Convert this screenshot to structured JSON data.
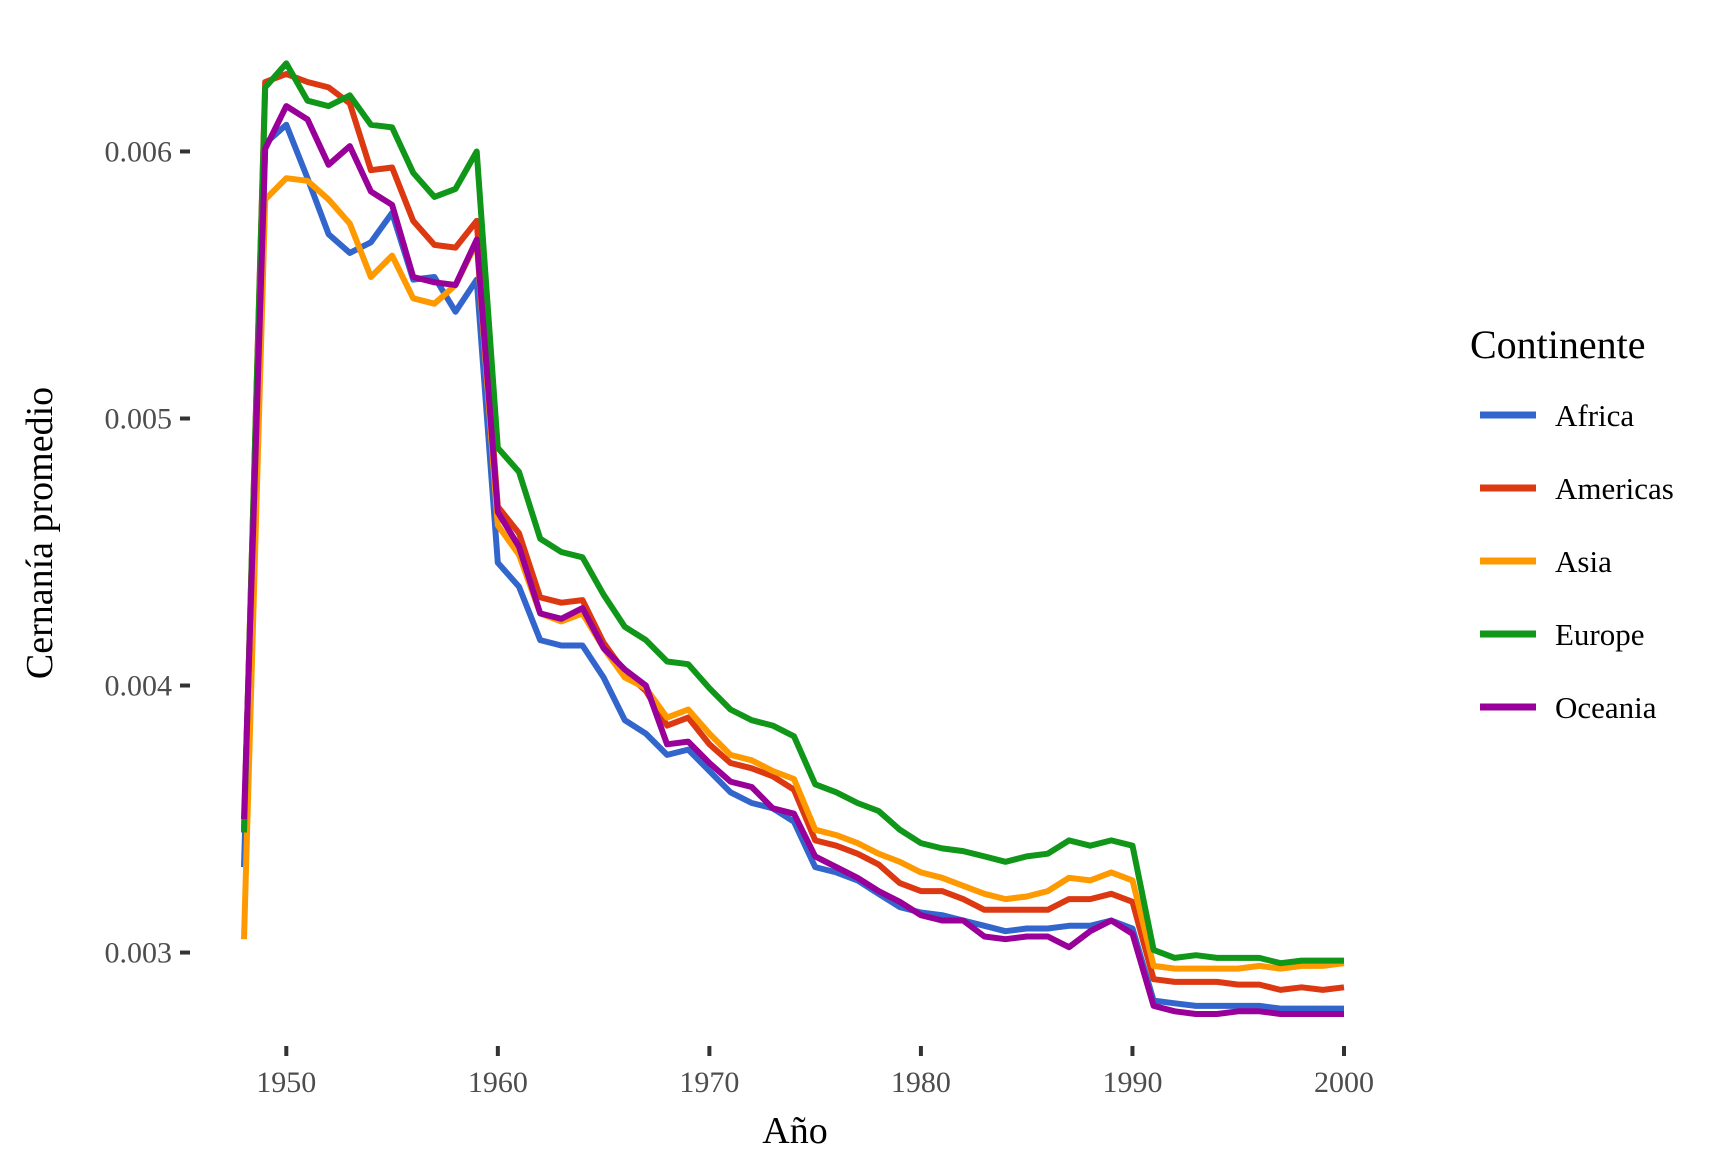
{
  "chart_data": {
    "type": "line",
    "title": "",
    "xlabel": "Año",
    "ylabel": "Cernanía promedio",
    "xlim": [
      1948,
      2000
    ],
    "ylim": [
      0.00265,
      0.00638
    ],
    "x_ticks": [
      1950,
      1960,
      1970,
      1980,
      1990,
      2000
    ],
    "y_ticks": [
      0.003,
      0.004,
      0.005,
      0.006
    ],
    "y_tick_labels": [
      "0.003",
      "0.004",
      "0.005",
      "0.006"
    ],
    "grid": false,
    "legend": {
      "title": "Continente",
      "position": "right"
    },
    "x": [
      1948,
      1949,
      1950,
      1951,
      1952,
      1953,
      1954,
      1955,
      1956,
      1957,
      1958,
      1959,
      1960,
      1961,
      1962,
      1963,
      1964,
      1965,
      1966,
      1967,
      1968,
      1969,
      1970,
      1971,
      1972,
      1973,
      1974,
      1975,
      1976,
      1977,
      1978,
      1979,
      1980,
      1981,
      1982,
      1983,
      1984,
      1985,
      1986,
      1987,
      1988,
      1989,
      1990,
      1991,
      1992,
      1993,
      1994,
      1995,
      1996,
      1997,
      1998,
      1999,
      2000
    ],
    "series": [
      {
        "name": "Africa",
        "color": "#3366cc",
        "values": [
          0.00332,
          0.00603,
          0.0061,
          0.0059,
          0.00569,
          0.00562,
          0.00566,
          0.00577,
          0.00552,
          0.00553,
          0.0054,
          0.00552,
          0.00446,
          0.00437,
          0.00417,
          0.00415,
          0.00415,
          0.00403,
          0.00387,
          0.00382,
          0.00374,
          0.00376,
          0.00368,
          0.0036,
          0.00356,
          0.00354,
          0.00349,
          0.00332,
          0.0033,
          0.00327,
          0.00322,
          0.00317,
          0.00315,
          0.00314,
          0.00312,
          0.0031,
          0.00308,
          0.00309,
          0.00309,
          0.0031,
          0.0031,
          0.00312,
          0.00309,
          0.00282,
          0.00281,
          0.0028,
          0.0028,
          0.0028,
          0.0028,
          0.00279,
          0.00279,
          0.00279,
          0.00279
        ]
      },
      {
        "name": "Americas",
        "color": "#dc3912",
        "values": [
          0.00345,
          0.00626,
          0.00629,
          0.00626,
          0.00624,
          0.00618,
          0.00593,
          0.00594,
          0.00574,
          0.00565,
          0.00564,
          0.00574,
          0.00467,
          0.00457,
          0.00433,
          0.00431,
          0.00432,
          0.00416,
          0.00405,
          0.00398,
          0.00385,
          0.00388,
          0.00378,
          0.00371,
          0.00369,
          0.00366,
          0.00361,
          0.00342,
          0.0034,
          0.00337,
          0.00333,
          0.00326,
          0.00323,
          0.00323,
          0.0032,
          0.00316,
          0.00316,
          0.00316,
          0.00316,
          0.0032,
          0.0032,
          0.00322,
          0.00319,
          0.0029,
          0.00289,
          0.00289,
          0.00289,
          0.00288,
          0.00288,
          0.00286,
          0.00287,
          0.00286,
          0.00287
        ]
      },
      {
        "name": "Asia",
        "color": "#ff9900",
        "values": [
          0.00305,
          0.00582,
          0.0059,
          0.00589,
          0.00582,
          0.00573,
          0.00553,
          0.00561,
          0.00545,
          0.00543,
          0.0055,
          0.00566,
          0.0046,
          0.00449,
          0.00427,
          0.00424,
          0.00427,
          0.00414,
          0.00403,
          0.00399,
          0.00388,
          0.00391,
          0.00382,
          0.00374,
          0.00372,
          0.00368,
          0.00365,
          0.00346,
          0.00344,
          0.00341,
          0.00337,
          0.00334,
          0.0033,
          0.00328,
          0.00325,
          0.00322,
          0.0032,
          0.00321,
          0.00323,
          0.00328,
          0.00327,
          0.0033,
          0.00327,
          0.00295,
          0.00294,
          0.00294,
          0.00294,
          0.00294,
          0.00295,
          0.00294,
          0.00295,
          0.00295,
          0.00296
        ]
      },
      {
        "name": "Europe",
        "color": "#109618",
        "values": [
          0.00345,
          0.00624,
          0.00633,
          0.00619,
          0.00617,
          0.00621,
          0.0061,
          0.00609,
          0.00592,
          0.00583,
          0.00586,
          0.006,
          0.00489,
          0.0048,
          0.00455,
          0.0045,
          0.00448,
          0.00434,
          0.00422,
          0.00417,
          0.00409,
          0.00408,
          0.00399,
          0.00391,
          0.00387,
          0.00385,
          0.00381,
          0.00363,
          0.0036,
          0.00356,
          0.00353,
          0.00346,
          0.00341,
          0.00339,
          0.00338,
          0.00336,
          0.00334,
          0.00336,
          0.00337,
          0.00342,
          0.0034,
          0.00342,
          0.0034,
          0.00301,
          0.00298,
          0.00299,
          0.00298,
          0.00298,
          0.00298,
          0.00296,
          0.00297,
          0.00297,
          0.00297
        ]
      },
      {
        "name": "Oceania",
        "color": "#990099",
        "values": [
          0.0035,
          0.00601,
          0.00617,
          0.00612,
          0.00595,
          0.00602,
          0.00585,
          0.0058,
          0.00553,
          0.00551,
          0.0055,
          0.00567,
          0.00465,
          0.00452,
          0.00427,
          0.00425,
          0.00429,
          0.00414,
          0.00406,
          0.004,
          0.00378,
          0.00379,
          0.00371,
          0.00364,
          0.00362,
          0.00354,
          0.00352,
          0.00336,
          0.00332,
          0.00328,
          0.00323,
          0.00319,
          0.00314,
          0.00312,
          0.00312,
          0.00306,
          0.00305,
          0.00306,
          0.00306,
          0.00302,
          0.00308,
          0.00312,
          0.00307,
          0.0028,
          0.00278,
          0.00277,
          0.00277,
          0.00278,
          0.00278,
          0.00277,
          0.00277,
          0.00277,
          0.00277
        ]
      }
    ]
  }
}
